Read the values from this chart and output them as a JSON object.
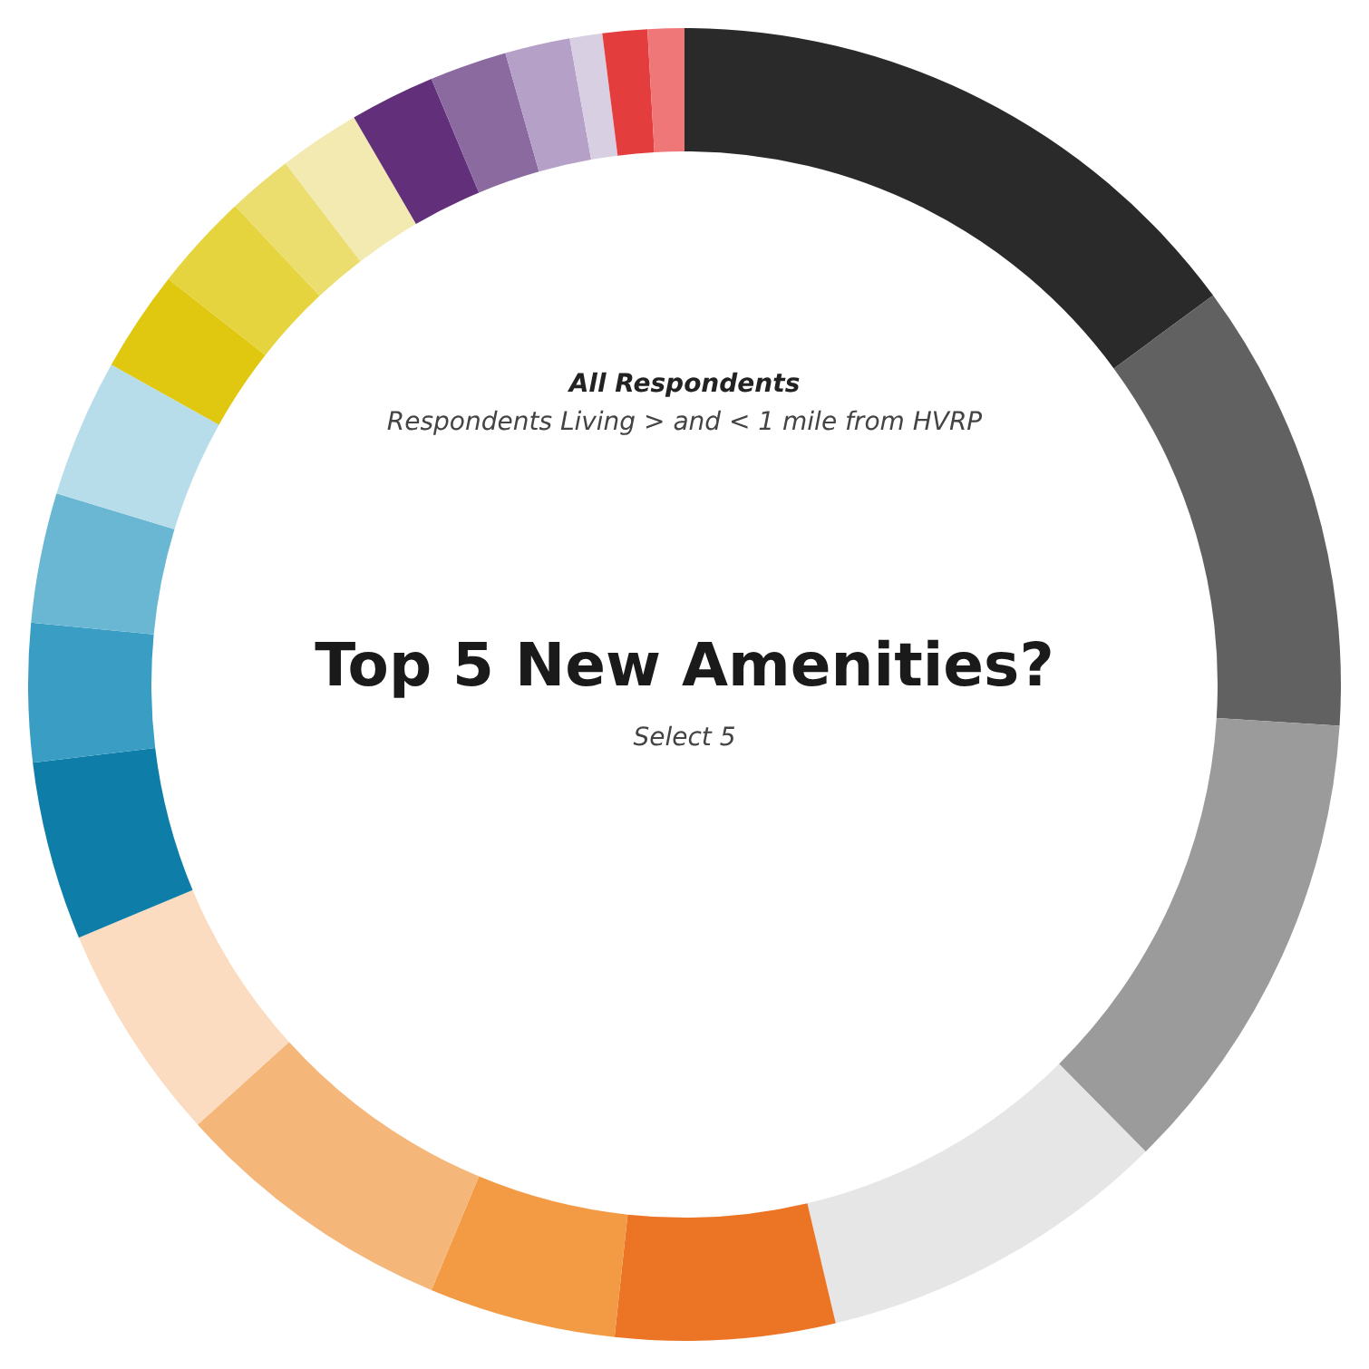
{
  "chart_data": {
    "type": "donut",
    "title": "Top 5 New Amenities?",
    "subtitle": "Select 5",
    "annotations": [
      "All Respondents",
      "Respondents Living > and <  1 mile from HVRP"
    ],
    "categories": [
      null,
      null,
      null,
      null,
      null,
      null,
      null,
      null,
      null,
      null,
      null,
      null,
      null,
      null,
      null,
      null,
      null,
      null,
      null,
      null,
      null,
      null
    ],
    "values": [
      14.9,
      11.1,
      11.6,
      8.7,
      5.4,
      4.6,
      7.0,
      5.4,
      4.4,
      3.4,
      3.2,
      3.4,
      2.5,
      2.4,
      1.6,
      2.0,
      2.1,
      1.9,
      1.6,
      0.8,
      1.1,
      0.9
    ],
    "colors": [
      "#2b2a2b",
      "#616161",
      "#9b9b9b",
      "#e6e6e6",
      "#ec7425",
      "#f39a45",
      "#f5b67a",
      "#fbdcc0",
      "#0e7ea8",
      "#3a9dc4",
      "#6ab7d4",
      "#b7dcea",
      "#dfc80f",
      "#e6d43e",
      "#ecdd6f",
      "#f2eab0",
      "#62307a",
      "#8b6aa0",
      "#b5a0c8",
      "#d8d0e2",
      "#e43d3d",
      "#ef7777"
    ],
    "legend": false
  }
}
